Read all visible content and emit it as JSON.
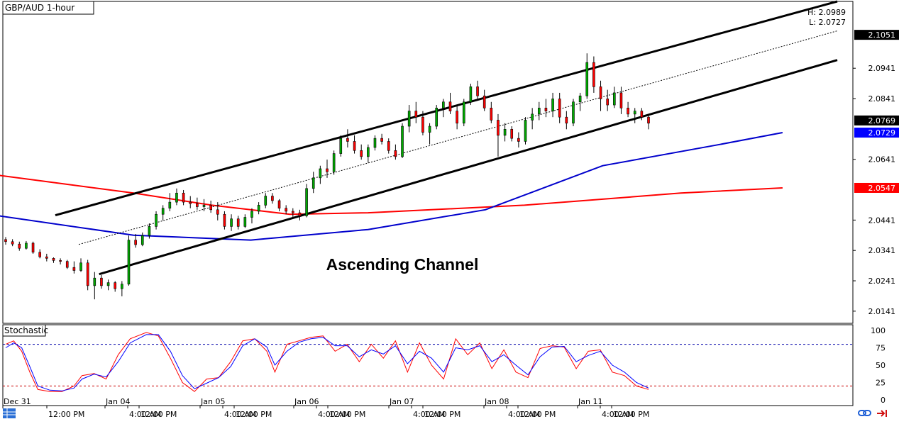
{
  "chart_data": [
    {
      "type": "candlestick",
      "title": "GBP/AUD 1-hour",
      "hl_box": {
        "high": "H: 2.0989",
        "low": "L: 2.0727"
      },
      "annotation": "Ascending Channel",
      "ylim": [
        2.0101,
        2.1161
      ],
      "y_ticks": [
        "2.0941",
        "2.0841",
        "2.0641",
        "2.0441",
        "2.0341",
        "2.0241",
        "2.0141"
      ],
      "price_tags": [
        {
          "label": "2.1051",
          "value": 2.1051,
          "bg": "#000000",
          "fg": "#ffffff"
        },
        {
          "label": "2.0769",
          "value": 2.0769,
          "bg": "#000000",
          "fg": "#ffffff"
        },
        {
          "label": "2.0729",
          "value": 2.0729,
          "bg": "#0000ff",
          "fg": "#ffffff"
        },
        {
          "label": "2.0547",
          "value": 2.0547,
          "bg": "#ff0000",
          "fg": "#ffffff"
        }
      ],
      "x_labels": [
        "Dec 31",
        "12:00 PM",
        "Jan 04",
        "4:00 AM",
        "12:00 PM",
        "Jan 05",
        "4:00 AM",
        "12:00 PM",
        "Jan 06",
        "4:00 AM",
        "12:00 PM",
        "Jan 07",
        "4:00 AM",
        "12:00 PM",
        "Jan 08",
        "4:00 AM",
        "12:00 PM",
        "Jan 11",
        "4:00 AM",
        "12:00 PM"
      ],
      "channel": {
        "upper": [
          [
            0.0,
            2.0457
          ],
          [
            1.0,
            2.1161
          ]
        ],
        "lower": [
          [
            0.0,
            2.0221
          ],
          [
            1.0,
            2.0968
          ]
        ],
        "mid": [
          [
            0.0,
            2.0339
          ],
          [
            1.0,
            2.1064
          ]
        ]
      },
      "ma_blue": [
        [
          -0.08,
          2.0458
        ],
        [
          0.1,
          2.0391
        ],
        [
          0.25,
          2.0375
        ],
        [
          0.4,
          2.041
        ],
        [
          0.55,
          2.0475
        ],
        [
          0.7,
          2.062
        ],
        [
          0.85,
          2.069
        ],
        [
          0.93,
          2.0729
        ]
      ],
      "ma_red": [
        [
          -0.08,
          2.0591
        ],
        [
          0.1,
          2.053
        ],
        [
          0.2,
          2.049
        ],
        [
          0.3,
          2.046
        ],
        [
          0.4,
          2.0465
        ],
        [
          0.6,
          2.049
        ],
        [
          0.8,
          2.053
        ],
        [
          0.93,
          2.0547
        ]
      ],
      "candles": [
        [
          2.0377,
          2.0385,
          2.036,
          2.037
        ],
        [
          2.037,
          2.0378,
          2.0355,
          2.0362
        ],
        [
          2.0362,
          2.037,
          2.034,
          2.0348
        ],
        [
          2.0348,
          2.0372,
          2.0344,
          2.0365
        ],
        [
          2.0365,
          2.037,
          2.033,
          2.0335
        ],
        [
          2.0335,
          2.0345,
          2.0315,
          2.032
        ],
        [
          2.032,
          2.033,
          2.0305,
          2.0315
        ],
        [
          2.0315,
          2.0318,
          2.03,
          2.0308
        ],
        [
          2.0308,
          2.0315,
          2.0295,
          2.0305
        ],
        [
          2.0305,
          2.031,
          2.028,
          2.0285
        ],
        [
          2.0285,
          2.0305,
          2.0265,
          2.0275
        ],
        [
          2.0275,
          2.0315,
          2.027,
          2.03
        ],
        [
          2.03,
          2.031,
          2.021,
          2.0225
        ],
        [
          2.0225,
          2.027,
          2.018,
          2.025
        ],
        [
          2.025,
          2.026,
          2.0215,
          2.0225
        ],
        [
          2.0225,
          2.0245,
          2.021,
          2.0235
        ],
        [
          2.0235,
          2.024,
          2.0205,
          2.0215
        ],
        [
          2.0215,
          2.024,
          2.019,
          2.023
        ],
        [
          2.023,
          2.039,
          2.0225,
          2.0375
        ],
        [
          2.0375,
          2.0395,
          2.035,
          2.036
        ],
        [
          2.036,
          2.04,
          2.0355,
          2.039
        ],
        [
          2.039,
          2.043,
          2.038,
          2.042
        ],
        [
          2.042,
          2.047,
          2.041,
          2.046
        ],
        [
          2.046,
          2.049,
          2.044,
          2.048
        ],
        [
          2.048,
          2.053,
          2.047,
          2.05
        ],
        [
          2.05,
          2.0545,
          2.049,
          2.053
        ],
        [
          2.053,
          2.054,
          2.049,
          2.05
        ],
        [
          2.05,
          2.052,
          2.048,
          2.0495
        ],
        [
          2.0495,
          2.0515,
          2.0475,
          2.0485
        ],
        [
          2.0485,
          2.051,
          2.047,
          2.049
        ],
        [
          2.049,
          2.0505,
          2.0465,
          2.0475
        ],
        [
          2.0475,
          2.05,
          2.044,
          2.046
        ],
        [
          2.046,
          2.047,
          2.041,
          2.042
        ],
        [
          2.042,
          2.046,
          2.0405,
          2.0445
        ],
        [
          2.0445,
          2.0455,
          2.041,
          2.042
        ],
        [
          2.042,
          2.046,
          2.0415,
          2.045
        ],
        [
          2.045,
          2.048,
          2.043,
          2.047
        ],
        [
          2.047,
          2.05,
          2.046,
          2.049
        ],
        [
          2.049,
          2.053,
          2.048,
          2.052
        ],
        [
          2.052,
          2.053,
          2.0495,
          2.0505
        ],
        [
          2.0505,
          2.051,
          2.047,
          2.048
        ],
        [
          2.048,
          2.049,
          2.046,
          2.047
        ],
        [
          2.047,
          2.048,
          2.045,
          2.0465
        ],
        [
          2.0465,
          2.0475,
          2.044,
          2.0455
        ],
        [
          2.0455,
          2.056,
          2.045,
          2.0545
        ],
        [
          2.0545,
          2.06,
          2.053,
          2.058
        ],
        [
          2.058,
          2.062,
          2.056,
          2.061
        ],
        [
          2.061,
          2.064,
          2.058,
          2.06
        ],
        [
          2.06,
          2.067,
          2.059,
          2.066
        ],
        [
          2.066,
          2.072,
          2.065,
          2.071
        ],
        [
          2.071,
          2.074,
          2.068,
          2.07
        ],
        [
          2.07,
          2.072,
          2.066,
          2.067
        ],
        [
          2.067,
          2.069,
          2.064,
          2.065
        ],
        [
          2.065,
          2.069,
          2.063,
          2.068
        ],
        [
          2.068,
          2.072,
          2.067,
          2.071
        ],
        [
          2.071,
          2.0725,
          2.069,
          2.07
        ],
        [
          2.07,
          2.071,
          2.066,
          2.067
        ],
        [
          2.067,
          2.069,
          2.064,
          2.065
        ],
        [
          2.065,
          2.076,
          2.0645,
          2.075
        ],
        [
          2.075,
          2.082,
          2.073,
          2.08
        ],
        [
          2.08,
          2.083,
          2.076,
          2.078
        ],
        [
          2.078,
          2.08,
          2.072,
          2.073
        ],
        [
          2.073,
          2.076,
          2.069,
          2.075
        ],
        [
          2.075,
          2.082,
          2.074,
          2.081
        ],
        [
          2.081,
          2.084,
          2.078,
          2.083
        ],
        [
          2.083,
          2.086,
          2.079,
          2.08
        ],
        [
          2.08,
          2.082,
          2.074,
          2.076
        ],
        [
          2.076,
          2.084,
          2.075,
          2.083
        ],
        [
          2.083,
          2.089,
          2.082,
          2.088
        ],
        [
          2.088,
          2.09,
          2.084,
          2.085
        ],
        [
          2.085,
          2.087,
          2.08,
          2.081
        ],
        [
          2.081,
          2.083,
          2.076,
          2.077
        ],
        [
          2.077,
          2.079,
          2.065,
          2.072
        ],
        [
          2.072,
          2.076,
          2.07,
          2.074
        ],
        [
          2.074,
          2.075,
          2.07,
          2.071
        ],
        [
          2.071,
          2.073,
          2.068,
          2.07
        ],
        [
          2.07,
          2.078,
          2.069,
          2.077
        ],
        [
          2.077,
          2.081,
          2.074,
          2.079
        ],
        [
          2.079,
          2.083,
          2.077,
          2.081
        ],
        [
          2.081,
          2.084,
          2.078,
          2.08
        ],
        [
          2.08,
          2.086,
          2.078,
          2.084
        ],
        [
          2.084,
          2.086,
          2.076,
          2.078
        ],
        [
          2.078,
          2.08,
          2.074,
          2.076
        ],
        [
          2.076,
          2.084,
          2.075,
          2.083
        ],
        [
          2.083,
          2.086,
          2.08,
          2.085
        ],
        [
          2.085,
          2.099,
          2.084,
          2.096
        ],
        [
          2.096,
          2.098,
          2.086,
          2.088
        ],
        [
          2.088,
          2.09,
          2.08,
          2.084
        ],
        [
          2.084,
          2.087,
          2.08,
          2.082
        ],
        [
          2.082,
          2.088,
          2.081,
          2.086
        ],
        [
          2.086,
          2.088,
          2.079,
          2.081
        ],
        [
          2.081,
          2.083,
          2.078,
          2.079
        ],
        [
          2.079,
          2.081,
          2.076,
          2.08
        ],
        [
          2.08,
          2.081,
          2.077,
          2.078
        ],
        [
          2.078,
          2.079,
          2.074,
          2.076
        ]
      ],
      "stochastic": {
        "label": "Stochastic",
        "y_ticks": [
          "100",
          "75",
          "50",
          "25",
          "0"
        ],
        "levels": [
          80,
          20
        ],
        "k_color": "#ff0000",
        "d_color": "#0000ff",
        "k": [
          [
            0.0,
            80
          ],
          [
            0.02,
            85
          ],
          [
            0.04,
            70
          ],
          [
            0.06,
            40
          ],
          [
            0.08,
            15
          ],
          [
            0.11,
            12
          ],
          [
            0.14,
            12
          ],
          [
            0.17,
            20
          ],
          [
            0.19,
            35
          ],
          [
            0.22,
            38
          ],
          [
            0.25,
            30
          ],
          [
            0.28,
            65
          ],
          [
            0.31,
            88
          ],
          [
            0.35,
            97
          ],
          [
            0.38,
            92
          ],
          [
            0.41,
            60
          ],
          [
            0.44,
            25
          ],
          [
            0.47,
            12
          ],
          [
            0.5,
            30
          ],
          [
            0.53,
            32
          ],
          [
            0.56,
            55
          ],
          [
            0.59,
            85
          ],
          [
            0.62,
            88
          ],
          [
            0.65,
            70
          ],
          [
            0.67,
            40
          ],
          [
            0.7,
            80
          ],
          [
            0.73,
            85
          ],
          [
            0.76,
            90
          ],
          [
            0.79,
            92
          ],
          [
            0.82,
            70
          ],
          [
            0.85,
            80
          ],
          [
            0.88,
            55
          ],
          [
            0.91,
            80
          ],
          [
            0.94,
            60
          ],
          [
            0.97,
            85
          ],
          [
            1.0,
            40
          ],
          [
            1.03,
            82
          ],
          [
            1.06,
            50
          ],
          [
            1.09,
            30
          ],
          [
            1.12,
            88
          ],
          [
            1.15,
            65
          ],
          [
            1.18,
            82
          ],
          [
            1.21,
            45
          ],
          [
            1.24,
            72
          ],
          [
            1.27,
            40
          ],
          [
            1.3,
            32
          ],
          [
            1.33,
            74
          ],
          [
            1.36,
            78
          ],
          [
            1.39,
            76
          ],
          [
            1.42,
            45
          ],
          [
            1.45,
            70
          ],
          [
            1.48,
            72
          ],
          [
            1.51,
            40
          ],
          [
            1.54,
            35
          ],
          [
            1.57,
            20
          ],
          [
            1.6,
            15
          ]
        ],
        "d": [
          [
            0.0,
            75
          ],
          [
            0.02,
            82
          ],
          [
            0.04,
            75
          ],
          [
            0.06,
            48
          ],
          [
            0.08,
            20
          ],
          [
            0.11,
            14
          ],
          [
            0.14,
            13
          ],
          [
            0.17,
            17
          ],
          [
            0.19,
            30
          ],
          [
            0.22,
            37
          ],
          [
            0.25,
            33
          ],
          [
            0.28,
            55
          ],
          [
            0.31,
            82
          ],
          [
            0.35,
            94
          ],
          [
            0.38,
            94
          ],
          [
            0.41,
            70
          ],
          [
            0.44,
            35
          ],
          [
            0.47,
            16
          ],
          [
            0.5,
            24
          ],
          [
            0.53,
            32
          ],
          [
            0.56,
            48
          ],
          [
            0.59,
            78
          ],
          [
            0.62,
            88
          ],
          [
            0.65,
            76
          ],
          [
            0.67,
            50
          ],
          [
            0.7,
            70
          ],
          [
            0.73,
            83
          ],
          [
            0.76,
            88
          ],
          [
            0.79,
            90
          ],
          [
            0.82,
            78
          ],
          [
            0.85,
            78
          ],
          [
            0.88,
            62
          ],
          [
            0.91,
            72
          ],
          [
            0.94,
            66
          ],
          [
            0.97,
            78
          ],
          [
            1.0,
            52
          ],
          [
            1.03,
            70
          ],
          [
            1.06,
            60
          ],
          [
            1.09,
            40
          ],
          [
            1.12,
            75
          ],
          [
            1.15,
            72
          ],
          [
            1.18,
            78
          ],
          [
            1.21,
            55
          ],
          [
            1.24,
            65
          ],
          [
            1.27,
            50
          ],
          [
            1.3,
            36
          ],
          [
            1.33,
            62
          ],
          [
            1.36,
            76
          ],
          [
            1.39,
            77
          ],
          [
            1.42,
            55
          ],
          [
            1.45,
            64
          ],
          [
            1.48,
            70
          ],
          [
            1.51,
            50
          ],
          [
            1.54,
            40
          ],
          [
            1.57,
            25
          ],
          [
            1.6,
            17
          ]
        ]
      }
    }
  ],
  "ui": {
    "link_icon": "chain-link-icon",
    "arrow_icon": "arrow-right-icon",
    "menu_icon": "grid-menu-icon"
  }
}
